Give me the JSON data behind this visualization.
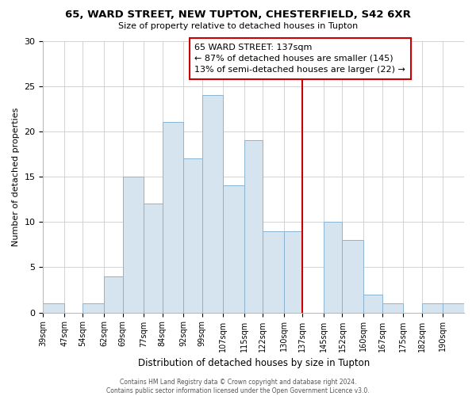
{
  "title1": "65, WARD STREET, NEW TUPTON, CHESTERFIELD, S42 6XR",
  "title2": "Size of property relative to detached houses in Tupton",
  "xlabel": "Distribution of detached houses by size in Tupton",
  "ylabel": "Number of detached properties",
  "bin_labels": [
    "39sqm",
    "47sqm",
    "54sqm",
    "62sqm",
    "69sqm",
    "77sqm",
    "84sqm",
    "92sqm",
    "99sqm",
    "107sqm",
    "115sqm",
    "122sqm",
    "130sqm",
    "137sqm",
    "145sqm",
    "152sqm",
    "160sqm",
    "167sqm",
    "175sqm",
    "182sqm",
    "190sqm"
  ],
  "bar_heights": [
    1,
    0,
    1,
    4,
    15,
    12,
    21,
    17,
    24,
    14,
    19,
    9,
    9,
    0,
    10,
    8,
    2,
    1,
    0,
    1,
    1
  ],
  "bar_color": "#d6e4f0",
  "bar_edge_color": "#8ab4d0",
  "highlight_line_color": "#cc0000",
  "ylim": [
    0,
    30
  ],
  "yticks": [
    0,
    5,
    10,
    15,
    20,
    25,
    30
  ],
  "annotation_title": "65 WARD STREET: 137sqm",
  "annotation_line1": "← 87% of detached houses are smaller (145)",
  "annotation_line2": "13% of semi-detached houses are larger (22) →",
  "annotation_box_color": "#ffffff",
  "annotation_box_edge": "#cc0000",
  "footer1": "Contains HM Land Registry data © Crown copyright and database right 2024.",
  "footer2": "Contains public sector information licensed under the Open Government Licence v3.0."
}
